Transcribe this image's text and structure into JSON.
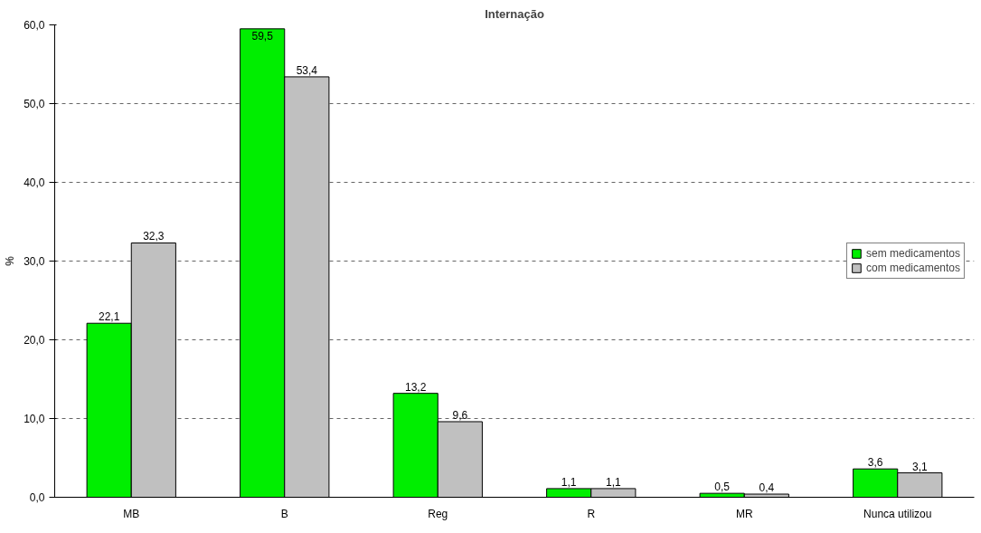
{
  "chart_data": {
    "type": "bar",
    "title": "Internação",
    "ylabel": "%",
    "categories": [
      "MB",
      "B",
      "Reg",
      "R",
      "MR",
      "Nunca utilizou"
    ],
    "series": [
      {
        "name": "sem medicamentos",
        "color": "#00ee00",
        "values": [
          22.1,
          59.5,
          13.2,
          1.1,
          0.5,
          3.6
        ],
        "value_labels": [
          "22,1",
          "59,5",
          "13,2",
          "1,1",
          "0,5",
          "3,6"
        ]
      },
      {
        "name": "com medicamentos",
        "color": "#c0c0c0",
        "values": [
          32.3,
          53.4,
          9.6,
          1.1,
          0.4,
          3.1
        ],
        "value_labels": [
          "32,3",
          "53,4",
          "9,6",
          "1,1",
          "0,4",
          "3,1"
        ]
      }
    ],
    "ylim": [
      0,
      60
    ],
    "yticks": [
      {
        "value": 0,
        "label": "0,0"
      },
      {
        "value": 10,
        "label": "10,0"
      },
      {
        "value": 20,
        "label": "20,0"
      },
      {
        "value": 30,
        "label": "30,0"
      },
      {
        "value": 40,
        "label": "40,0"
      },
      {
        "value": 50,
        "label": "50,0"
      },
      {
        "value": 60,
        "label": "60,0"
      }
    ],
    "grid": "y",
    "legend": "right"
  }
}
